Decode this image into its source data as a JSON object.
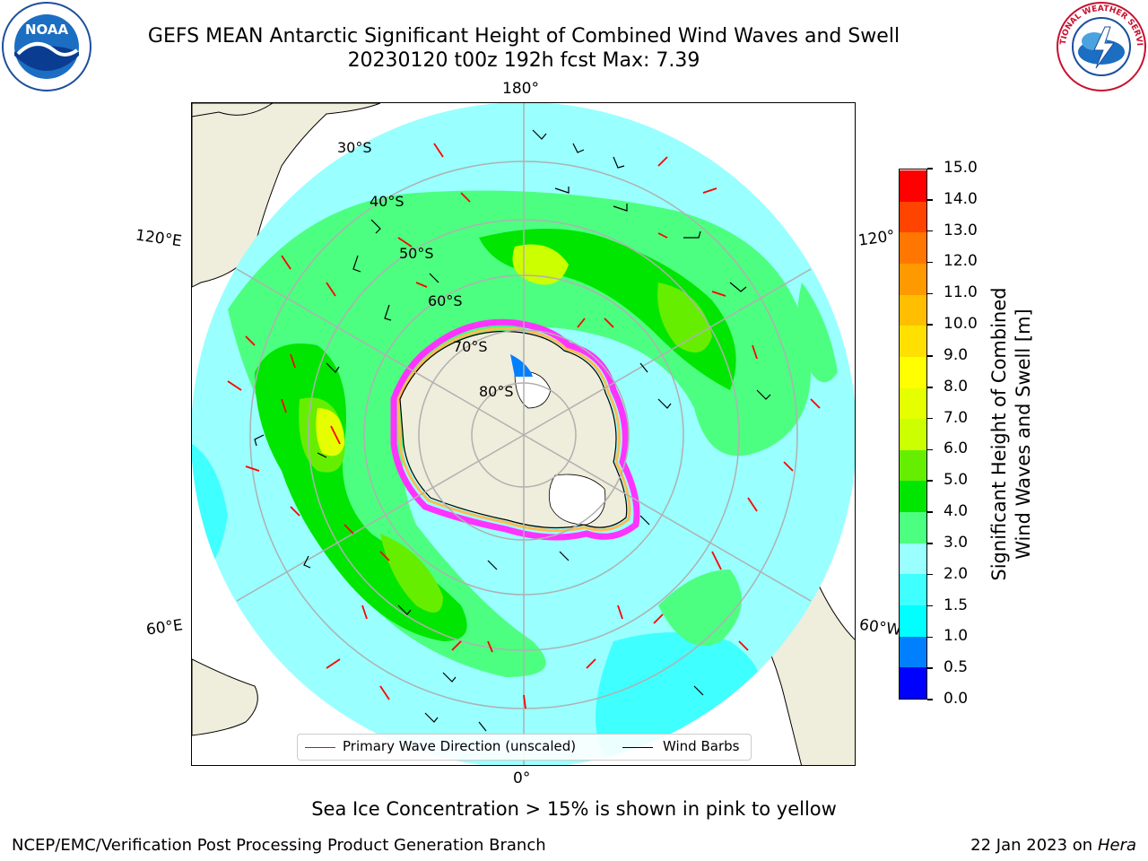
{
  "title": {
    "line1": "GEFS MEAN Antarctic Significant Height of Combined Wind Waves and Swell",
    "line2": "20230120 t00z 192h fcst   Max: 7.39"
  },
  "logos": {
    "left_icon": "noaa-logo-icon",
    "left_text": "NOAA",
    "right_icon": "nws-logo-icon",
    "right_text": "NATIONAL WEATHER SERVICE"
  },
  "map": {
    "projection": "south-polar-stereographic",
    "longitude_labels": {
      "top": "180°",
      "bottom": "0°",
      "left_upper": "120°E",
      "left_lower": "60°E",
      "right_upper": "120°",
      "right_lower": "60°W"
    },
    "latitude_labels": [
      "30°S",
      "40°S",
      "50°S",
      "60°S",
      "70°S",
      "80°S"
    ],
    "colors": {
      "land": "#efeddb",
      "ice_cap": "#ffffff",
      "sea_ice_edge": "#ff33ff",
      "grid": "#b0b0b0",
      "wave_arrow": "#ff0000",
      "wind_barb": "#000000"
    }
  },
  "colorbar": {
    "label": "Significant Height of Combined Wind Waves and Swell [m]",
    "label_line1": "Significant Height of Combined",
    "label_line2": "Wind Waves and Swell [m]",
    "ticks": [
      "0.0",
      "0.5",
      "1.0",
      "1.5",
      "2.0",
      "3.0",
      "4.0",
      "5.0",
      "6.0",
      "7.0",
      "8.0",
      "9.0",
      "10.0",
      "11.0",
      "12.0",
      "13.0",
      "14.0",
      "15.0"
    ],
    "colors": [
      "#0000ff",
      "#0080ff",
      "#00ffff",
      "#40ffff",
      "#99ffff",
      "#4dff80",
      "#00e600",
      "#66ee00",
      "#ccff00",
      "#e5ff00",
      "#ffff00",
      "#ffe000",
      "#ffbf00",
      "#ff9900",
      "#ff7700",
      "#ff4400",
      "#ff0000"
    ]
  },
  "legend": {
    "items": [
      {
        "label": "Primary Wave Direction (unscaled)",
        "color": "#ff0000"
      },
      {
        "label": "Wind Barbs",
        "color": "#000000"
      }
    ]
  },
  "sea_ice_note": "Sea Ice Concentration > 15% is shown in pink to yellow",
  "footer": {
    "left": "NCEP/EMC/Verification Post Processing Product Generation Branch",
    "right_date": "22 Jan 2023 on ",
    "right_host": "Hera"
  }
}
